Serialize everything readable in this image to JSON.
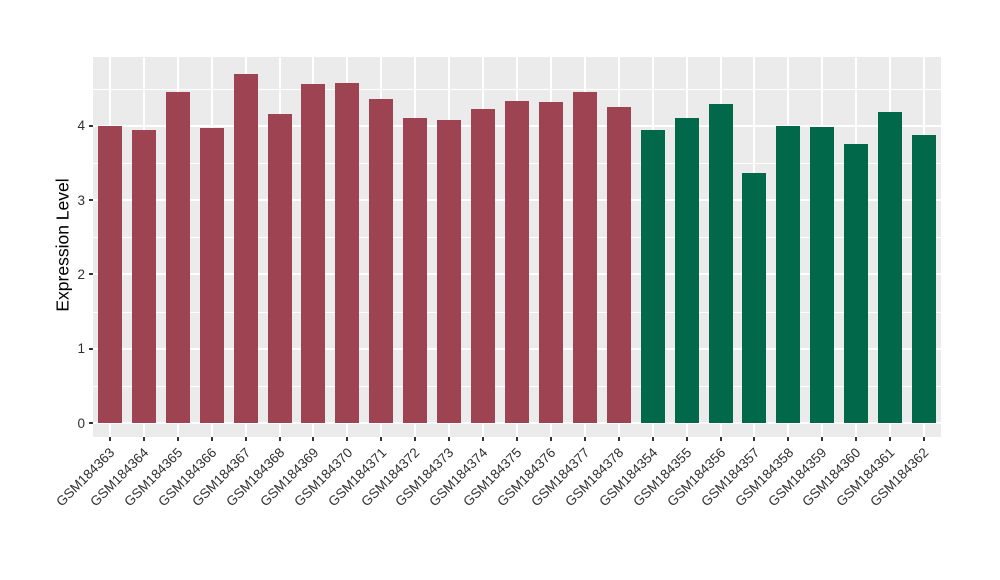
{
  "figure": {
    "background": "#FFFFFF",
    "panel_background": "#EBEBEB",
    "gridline_color": "#FFFFFF",
    "tick_mark_color": "#333333",
    "tick_label_color": "#303030",
    "axis_title_color": "#000000"
  },
  "chart_data": {
    "type": "bar",
    "title": "",
    "xlabel": "",
    "ylabel": "Expression Level",
    "ylim": [
      0,
      4.93
    ],
    "yticks": [
      0,
      1,
      2,
      3,
      4
    ],
    "minor_gridlines": [
      0.5,
      1.5,
      2.5,
      3.5,
      4.5
    ],
    "grid": true,
    "legend_position": "none",
    "group_colors": {
      "group1": "#9E4351",
      "group2": "#016849"
    },
    "bars": [
      {
        "label": "GSM184363",
        "value": 4.0,
        "group": "group1"
      },
      {
        "label": "GSM184364",
        "value": 3.94,
        "group": "group1"
      },
      {
        "label": "GSM184365",
        "value": 4.45,
        "group": "group1"
      },
      {
        "label": "GSM184366",
        "value": 3.97,
        "group": "group1"
      },
      {
        "label": "GSM184367",
        "value": 4.7,
        "group": "group1"
      },
      {
        "label": "GSM184368",
        "value": 4.16,
        "group": "group1"
      },
      {
        "label": "GSM184369",
        "value": 4.56,
        "group": "group1"
      },
      {
        "label": "GSM184370",
        "value": 4.58,
        "group": "group1"
      },
      {
        "label": "GSM184371",
        "value": 4.36,
        "group": "group1"
      },
      {
        "label": "GSM184372",
        "value": 4.11,
        "group": "group1"
      },
      {
        "label": "GSM184373",
        "value": 4.08,
        "group": "group1"
      },
      {
        "label": "GSM184374",
        "value": 4.22,
        "group": "group1"
      },
      {
        "label": "GSM184375",
        "value": 4.34,
        "group": "group1"
      },
      {
        "label": "GSM184376",
        "value": 4.32,
        "group": "group1"
      },
      {
        "label": "GSM184377",
        "value": 4.46,
        "group": "group1"
      },
      {
        "label": "GSM184378",
        "value": 4.25,
        "group": "group1"
      },
      {
        "label": "GSM184354",
        "value": 3.94,
        "group": "group2"
      },
      {
        "label": "GSM184355",
        "value": 4.1,
        "group": "group2"
      },
      {
        "label": "GSM184356",
        "value": 4.3,
        "group": "group2"
      },
      {
        "label": "GSM184357",
        "value": 3.36,
        "group": "group2"
      },
      {
        "label": "GSM184358",
        "value": 4.0,
        "group": "group2"
      },
      {
        "label": "GSM184359",
        "value": 3.99,
        "group": "group2"
      },
      {
        "label": "GSM184360",
        "value": 3.76,
        "group": "group2"
      },
      {
        "label": "GSM184361",
        "value": 4.18,
        "group": "group2"
      },
      {
        "label": "GSM184362",
        "value": 3.88,
        "group": "group2"
      }
    ]
  }
}
